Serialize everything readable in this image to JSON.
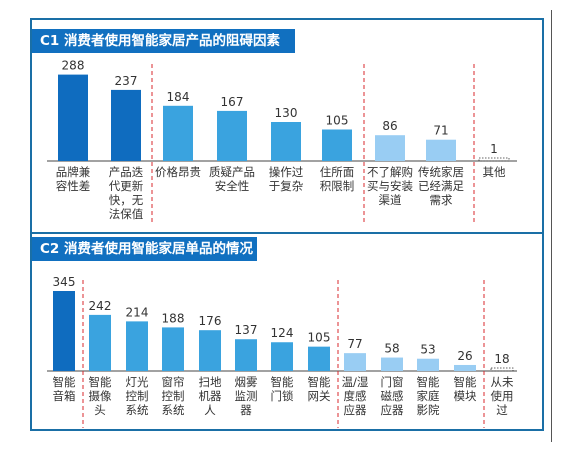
{
  "colors": {
    "frame": "#1a6fa6",
    "title_bg": "#1170c0",
    "dark": "#0f6cbf",
    "mid": "#3aa3df",
    "light": "#99cdf3",
    "separator": "#d9292c",
    "text": "#333333"
  },
  "chart_data": [
    {
      "type": "bar",
      "title": "C1 消费者使用智能家居产品的阻碍因素",
      "categories": [
        "品牌兼容性差",
        "产品迭代更新快，无法保值",
        "价格昂贵",
        "质疑产品安全性",
        "操作过于复杂",
        "住所面积限制",
        "不了解购买与安装渠道",
        "传统家居已经满足需求",
        "其他"
      ],
      "values": [
        288,
        237,
        184,
        167,
        130,
        105,
        86,
        71,
        1
      ],
      "label_lines": [
        [
          "品牌兼",
          "容性差"
        ],
        [
          "产品迭",
          "代更新",
          "快，无",
          "法保值"
        ],
        [
          "价格昂贵"
        ],
        [
          "质疑产品",
          "安全性"
        ],
        [
          "操作过",
          "于复杂"
        ],
        [
          "住所面",
          "积限制"
        ],
        [
          "不了解购",
          "买与安装",
          "渠道"
        ],
        [
          "传统家居",
          "已经满足",
          "需求"
        ],
        [
          "其他"
        ]
      ],
      "tiers": [
        "dark",
        "dark",
        "mid",
        "mid",
        "mid",
        "mid",
        "light",
        "light",
        "none"
      ],
      "ylim": [
        0,
        300
      ]
    },
    {
      "type": "bar",
      "title": "C2 消费者使用智能家居单品的情况",
      "categories": [
        "智能音箱",
        "智能摄像头",
        "灯光控制系统",
        "窗帘控制系统",
        "扫地机器人",
        "烟雾监测器",
        "智能门锁",
        "智能网关",
        "温/湿度感应器",
        "门窗磁感应器",
        "智能家庭影院",
        "智能模块",
        "从未使用过"
      ],
      "values": [
        345,
        242,
        214,
        188,
        176,
        137,
        124,
        105,
        77,
        58,
        53,
        26,
        18
      ],
      "label_lines": [
        [
          "智能",
          "音箱"
        ],
        [
          "智能",
          "摄像",
          "头"
        ],
        [
          "灯光",
          "控制",
          "系统"
        ],
        [
          "窗帘",
          "控制",
          "系统"
        ],
        [
          "扫地",
          "机器",
          "人"
        ],
        [
          "烟雾",
          "监测",
          "器"
        ],
        [
          "智能",
          "门锁"
        ],
        [
          "智能",
          "网关"
        ],
        [
          "温/湿",
          "度感",
          "应器"
        ],
        [
          "门窗",
          "磁感",
          "应器"
        ],
        [
          "智能",
          "家庭",
          "影院"
        ],
        [
          "智能",
          "模块"
        ],
        [
          "从未",
          "使用",
          "过"
        ]
      ],
      "tiers": [
        "dark",
        "mid",
        "mid",
        "mid",
        "mid",
        "mid",
        "mid",
        "mid",
        "light",
        "light",
        "light",
        "light",
        "none"
      ],
      "ylim": [
        0,
        345
      ]
    }
  ]
}
